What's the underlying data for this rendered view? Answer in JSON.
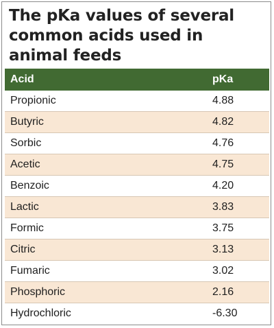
{
  "title": "The pKa values of several common acids used in animal feeds",
  "colors": {
    "header_bg": "#416a32",
    "row_alt_bg": "#f9e7d4",
    "border": "#8a8a8a"
  },
  "table": {
    "headers": {
      "acid": "Acid",
      "pka": "pKa"
    },
    "rows": [
      {
        "acid": "Propionic",
        "pka": "4.88"
      },
      {
        "acid": "Butyric",
        "pka": "4.82"
      },
      {
        "acid": "Sorbic",
        "pka": "4.76"
      },
      {
        "acid": "Acetic",
        "pka": "4.75"
      },
      {
        "acid": "Benzoic",
        "pka": "4.20"
      },
      {
        "acid": "Lactic",
        "pka": "3.83"
      },
      {
        "acid": "Formic",
        "pka": "3.75"
      },
      {
        "acid": "Citric",
        "pka": "3.13"
      },
      {
        "acid": "Fumaric",
        "pka": "3.02"
      },
      {
        "acid": "Phosphoric",
        "pka": "2.16"
      },
      {
        "acid": "Hydrochloric",
        "pka": "-6.30"
      }
    ]
  }
}
